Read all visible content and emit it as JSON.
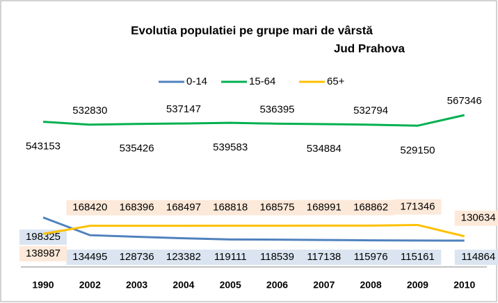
{
  "chart_data": {
    "type": "line",
    "title": "Evolutia populatiei pe grupe mari de vârstă",
    "subtitle": "Jud Prahova",
    "categories": [
      "1990",
      "2002",
      "2003",
      "2004",
      "2005",
      "2006",
      "2007",
      "2008",
      "2009",
      "2010"
    ],
    "series": [
      {
        "name": "0-14",
        "color": "#4f81bd",
        "values": [
          198325,
          134495,
          128736,
          123382,
          119111,
          118539,
          117138,
          115976,
          115161,
          114864
        ]
      },
      {
        "name": "15-64",
        "color": "#00b050",
        "values": [
          543153,
          532830,
          535426,
          537147,
          539583,
          536395,
          534884,
          532794,
          529150,
          567346
        ]
      },
      {
        "name": "65+",
        "color": "#ffc000",
        "values": [
          138987,
          168420,
          168396,
          168497,
          168818,
          168575,
          168991,
          168862,
          171346,
          130634
        ]
      }
    ]
  }
}
